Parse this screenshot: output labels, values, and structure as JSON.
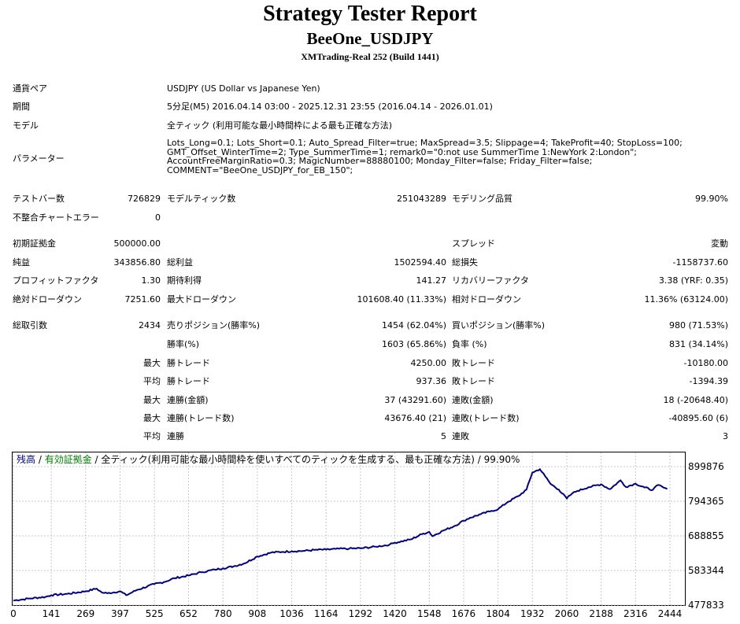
{
  "header": {
    "title": "Strategy Tester Report",
    "ea_name": "BeeOne_USDJPY",
    "server": "XMTrading-Real 252 (Build 1441)"
  },
  "info": {
    "symbol_label": "通貨ペア",
    "symbol_value": "USDJPY (US Dollar vs Japanese Yen)",
    "period_label": "期間",
    "period_value": "5分足(M5) 2016.04.14 03:00 - 2025.12.31 23:55 (2016.04.14 - 2026.01.01)",
    "model_label": "モデル",
    "model_value": "全ティック (利用可能な最小時間枠による最も正確な方法)",
    "params_label": "パラメーター",
    "params_lines": [
      "Lots_Long=0.1; Lots_Short=0.1; Auto_Spread_Filter=true; MaxSpread=3.5; Slippage=4; TakeProfit=40; StopLoss=100;",
      "GMT_Offset_WinterTime=2; Type_SummerTime=1; remark0=\"0:not use SummerTime 1:NewYork 2:London\";",
      "AccountFreeMarginRatio=0.3; MagicNumber=88880100; Monday_Filter=false; Friday_Filter=false;",
      "COMMENT=\"BeeOne_USDJPY_for_EB_150\";"
    ]
  },
  "stats": {
    "bars_label": "テストバー数",
    "bars_value": "726829",
    "ticks_label": "モデルティック数",
    "ticks_value": "251043289",
    "quality_label": "モデリング品質",
    "quality_value": "99.90%",
    "mismatch_label": "不整合チャートエラー",
    "mismatch_value": "0",
    "deposit_label": "初期証拠金",
    "deposit_value": "500000.00",
    "spread_label": "スプレッド",
    "spread_value": "変動",
    "net_label": "純益",
    "net_value": "343856.80",
    "gross_profit_label": "総利益",
    "gross_profit_value": "1502594.40",
    "gross_loss_label": "総損失",
    "gross_loss_value": "-1158737.60",
    "pf_label": "プロフィットファクタ",
    "pf_value": "1.30",
    "expected_label": "期待利得",
    "expected_value": "141.27",
    "recovery_label": "リカバリーファクタ",
    "recovery_value": "3.38 (YRF: 0.35)",
    "abs_dd_label": "絶対ドローダウン",
    "abs_dd_value": "7251.60",
    "max_dd_label": "最大ドローダウン",
    "max_dd_value": "101608.40 (11.33%)",
    "rel_dd_label": "相対ドローダウン",
    "rel_dd_value": "11.36% (63124.00)",
    "trades_label": "総取引数",
    "trades_value": "2434",
    "short_label": "売りポジション(勝率%)",
    "short_value": "1454 (62.04%)",
    "long_label": "買いポジション(勝率%)",
    "long_value": "980 (71.53%)",
    "winrate_label": "勝率(%)",
    "winrate_value": "1603 (65.86%)",
    "lossrate_label": "負率 (%)",
    "lossrate_value": "831 (34.14%)",
    "max_word": "最大",
    "avg_word": "平均",
    "win_trade_label": "勝トレード",
    "loss_trade_label": "敗トレード",
    "max_win_value": "4250.00",
    "max_loss_value": "-10180.00",
    "avg_win_value": "937.36",
    "avg_loss_value": "-1394.39",
    "consec_win_amt_label": "連勝(金額)",
    "consec_win_amt_value": "37 (43291.60)",
    "consec_loss_amt_label": "連敗(金額)",
    "consec_loss_amt_value": "18 (-20648.40)",
    "consec_win_tr_label": "連勝(トレード数)",
    "consec_win_tr_value": "43676.40 (21)",
    "consec_loss_tr_label": "連敗(トレード数)",
    "consec_loss_tr_value": "-40895.60 (6)",
    "avg_consec_win_label": "連勝",
    "avg_consec_win_value": "5",
    "avg_consec_loss_label": "連敗",
    "avg_consec_loss_value": "3"
  },
  "chart_data": {
    "type": "line",
    "legend_balance": "残高",
    "legend_sep1": " / ",
    "legend_equity": "有効証拠金",
    "legend_rest": " / 全ティック(利用可能な最小時間枠を使いすべてのティックを生成する、最も正確な方法) / 99.90%",
    "balance_color": "#000080",
    "equity_color": "#008000",
    "y_ticks": [
      "899876",
      "794365",
      "688855",
      "583344",
      "477833"
    ],
    "x_ticks": [
      "0",
      "141",
      "269",
      "397",
      "525",
      "652",
      "780",
      "908",
      "1036",
      "1164",
      "1292",
      "1420",
      "1548",
      "1676",
      "1804",
      "1932",
      "2060",
      "2188",
      "2316",
      "2444"
    ],
    "xlim": [
      0,
      2434
    ],
    "ylim": [
      477833,
      899876
    ],
    "series": [
      {
        "x": [
          0,
          60,
          120,
          141,
          200,
          269,
          310,
          330,
          350,
          397,
          420,
          460,
          525,
          560,
          600,
          652,
          700,
          750,
          780,
          820,
          860,
          908,
          960,
          1000,
          1036,
          1080,
          1120,
          1164,
          1200,
          1250,
          1292,
          1350,
          1400,
          1420,
          1480,
          1520,
          1548,
          1560,
          1600,
          1640,
          1676,
          1700,
          1740,
          1780,
          1804,
          1840,
          1880,
          1910,
          1932,
          1960,
          1980,
          2000,
          2030,
          2060,
          2080,
          2100,
          2140,
          2188,
          2220,
          2260,
          2280,
          2316,
          2350,
          2380,
          2400,
          2420,
          2434
        ],
        "y": [
          492000,
          498000,
          503000,
          508000,
          512000,
          520000,
          528000,
          516000,
          514000,
          520000,
          508000,
          524000,
          542000,
          548000,
          560000,
          568000,
          578000,
          586000,
          590000,
          596000,
          605000,
          626000,
          638000,
          640000,
          642000,
          643000,
          646000,
          647000,
          649000,
          650000,
          651000,
          656000,
          662000,
          668000,
          678000,
          694000,
          701000,
          688000,
          705000,
          718000,
          735000,
          744000,
          755000,
          765000,
          770000,
          792000,
          810000,
          830000,
          882000,
          892000,
          870000,
          847000,
          830000,
          803000,
          818000,
          826000,
          837000,
          846000,
          831000,
          858000,
          838000,
          848000,
          836000,
          829000,
          844000,
          836000,
          832000
        ]
      }
    ]
  }
}
